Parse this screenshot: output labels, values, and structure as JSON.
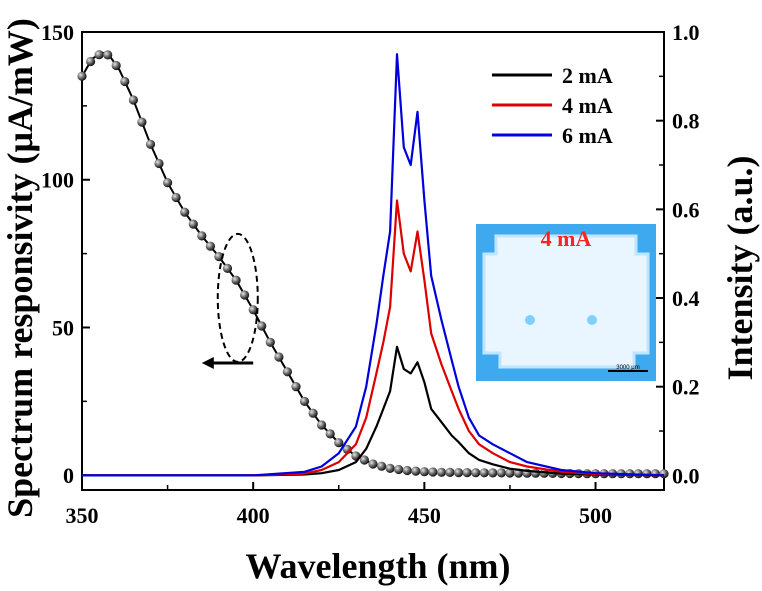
{
  "chart_data": {
    "type": "line",
    "xlabel": "Wavelength (nm)",
    "ylabel_left": "Spectrum responsivity (μA/mW)",
    "ylabel_right": "Intensity (a.u.)",
    "xlim": [
      350,
      520
    ],
    "ylim_left": [
      -5,
      150
    ],
    "ylim_right": [
      -0.033,
      1.0
    ],
    "x_ticks": [
      "350",
      "400",
      "450",
      "500"
    ],
    "y_left_ticks": [
      "0",
      "50",
      "100",
      "150"
    ],
    "y_right_ticks": [
      "0.0",
      "0.2",
      "0.4",
      "0.6",
      "0.8",
      "1.0"
    ],
    "grid": false,
    "legend_position": "top-right",
    "series": [
      {
        "name": "",
        "axis": "left",
        "color": "#000000",
        "markers": "gray spheres",
        "x": [
          350,
          353,
          356,
          358,
          361,
          365,
          370,
          375,
          380,
          385,
          390,
          395,
          400,
          405,
          410,
          415,
          420,
          425,
          430,
          435,
          440,
          445,
          450,
          455,
          460,
          470,
          480,
          490,
          500,
          510,
          520
        ],
        "values": [
          135,
          141,
          143,
          142,
          137,
          127,
          112,
          99,
          89,
          81,
          74,
          66,
          56,
          45,
          35,
          25,
          17,
          11,
          6.5,
          3.8,
          2.3,
          1.6,
          1.2,
          1.0,
          0.9,
          0.8,
          0.7,
          0.6,
          0.5,
          0.5,
          0.5
        ]
      },
      {
        "name": "2 mA",
        "axis": "right",
        "color": "#000000",
        "x": [
          350,
          400,
          415,
          420,
          425,
          430,
          433,
          436,
          438,
          440,
          442,
          444,
          446,
          448,
          450,
          452,
          455,
          458,
          460,
          463,
          466,
          470,
          475,
          480,
          490,
          500,
          520
        ],
        "values": [
          0.0,
          0.0,
          0.002,
          0.005,
          0.012,
          0.03,
          0.06,
          0.11,
          0.15,
          0.19,
          0.29,
          0.24,
          0.23,
          0.255,
          0.21,
          0.15,
          0.12,
          0.09,
          0.075,
          0.05,
          0.035,
          0.025,
          0.015,
          0.01,
          0.004,
          0.002,
          0.0
        ]
      },
      {
        "name": "4 mA",
        "axis": "right",
        "color": "#dd0000",
        "x": [
          350,
          400,
          415,
          420,
          425,
          430,
          433,
          436,
          438,
          440,
          442,
          444,
          446,
          448,
          450,
          452,
          455,
          458,
          460,
          463,
          466,
          470,
          475,
          480,
          490,
          500,
          520
        ],
        "values": [
          0.0,
          0.0,
          0.004,
          0.012,
          0.03,
          0.07,
          0.13,
          0.23,
          0.3,
          0.38,
          0.62,
          0.5,
          0.46,
          0.55,
          0.44,
          0.32,
          0.25,
          0.19,
          0.15,
          0.1,
          0.07,
          0.05,
          0.03,
          0.02,
          0.008,
          0.003,
          0.0
        ]
      },
      {
        "name": "6 mA",
        "axis": "right",
        "color": "#0000dd",
        "x": [
          350,
          400,
          415,
          420,
          425,
          430,
          433,
          436,
          438,
          440,
          442,
          444,
          446,
          448,
          450,
          452,
          455,
          458,
          460,
          463,
          466,
          470,
          475,
          480,
          490,
          500,
          520
        ],
        "values": [
          0.0,
          0.0,
          0.008,
          0.02,
          0.05,
          0.11,
          0.2,
          0.34,
          0.45,
          0.55,
          0.95,
          0.74,
          0.7,
          0.82,
          0.62,
          0.45,
          0.35,
          0.26,
          0.2,
          0.13,
          0.09,
          0.07,
          0.05,
          0.03,
          0.012,
          0.005,
          0.0
        ]
      }
    ],
    "inset": {
      "label": "4 mA",
      "scale_bar_text": "3000 μm",
      "label_color": "#ff2222",
      "background_color": "#3fa9f0",
      "pad_color": "#eaf6ff"
    },
    "annotations": [
      "dashed ellipse around black curve near 395 nm",
      "arrow pointing left toward left axis"
    ]
  }
}
